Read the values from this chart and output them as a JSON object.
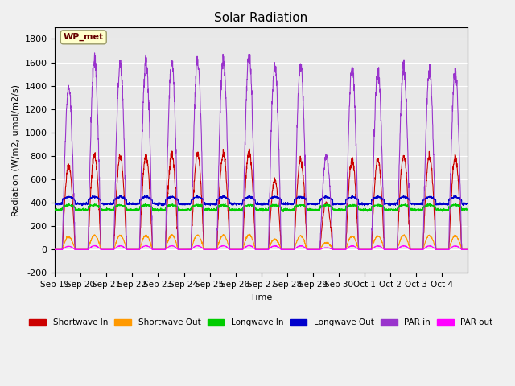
{
  "title": "Solar Radiation",
  "ylabel": "Radiation (W/m2, umol/m2/s)",
  "xlabel": "Time",
  "ylim": [
    -200,
    1900
  ],
  "yticks": [
    -200,
    0,
    200,
    400,
    600,
    800,
    1000,
    1200,
    1400,
    1600,
    1800
  ],
  "bg_color": "#e8e8e8",
  "legend_label": "WP_met",
  "series_colors": {
    "shortwave_in": "#cc0000",
    "shortwave_out": "#ff9900",
    "longwave_in": "#00cc00",
    "longwave_out": "#0000cc",
    "par_in": "#9933cc",
    "par_out": "#ff00ff"
  },
  "legend_entries": [
    {
      "label": "Shortwave In",
      "color": "#cc0000"
    },
    {
      "label": "Shortwave Out",
      "color": "#ff9900"
    },
    {
      "label": "Longwave In",
      "color": "#00cc00"
    },
    {
      "label": "Longwave Out",
      "color": "#0000cc"
    },
    {
      "label": "PAR in",
      "color": "#9933cc"
    },
    {
      "label": "PAR out",
      "color": "#ff00ff"
    }
  ],
  "xtick_labels": [
    "Sep 19",
    "Sep 20",
    "Sep 21",
    "Sep 22",
    "Sep 23",
    "Sep 24",
    "Sep 25",
    "Sep 26",
    "Sep 27",
    "Sep 28",
    "Sep 29",
    "Sep 30",
    "Oct 1",
    "Oct 2",
    "Oct 3",
    "Oct 4"
  ],
  "num_days": 16,
  "sw_in_peaks": [
    720,
    810,
    800,
    805,
    810,
    820,
    825,
    840,
    590,
    770,
    400,
    770,
    770,
    810,
    800,
    780
  ],
  "par_in_peaks": [
    1380,
    1610,
    1590,
    1610,
    1610,
    1610,
    1610,
    1660,
    1560,
    1580,
    800,
    1550,
    1540,
    1550,
    1520,
    1510
  ]
}
